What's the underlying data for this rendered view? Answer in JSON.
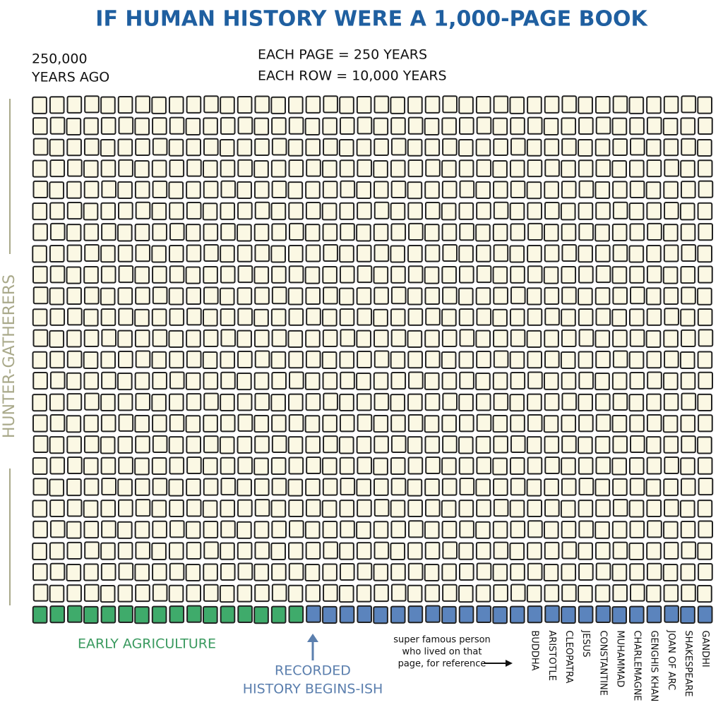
{
  "title": "IF HUMAN HISTORY WERE A 1,000-PAGE BOOK",
  "start_label": [
    "250,000",
    "YEARS AGO"
  ],
  "scale_notes": [
    "EACH PAGE = 250 YEARS",
    "EACH ROW = 10,000 YEARS"
  ],
  "columns": 40,
  "segments": [
    {
      "label": [
        "HUNTER-GATHERERS"
      ],
      "pages": 960,
      "color": "#fbf8e4"
    },
    {
      "label": [
        "EARLY AGRICULTURE"
      ],
      "pages": 16,
      "color": "#3fab6b"
    },
    {
      "label": [
        "RECORDED",
        "HISTORY BEGINS-ISH"
      ],
      "pages": 24,
      "color": "#5b84bd"
    }
  ],
  "reference_note": [
    "super famous person",
    "who lived on that",
    "page, for reference"
  ],
  "people": [
    "BUDDHA",
    "ARISTOTLE",
    "CLEOPATRA",
    "JESUS",
    "CONSTANTINE",
    "MUHAMMAD",
    "CHARLEMAGNE",
    "GENGHIS KHAN",
    "JOAN OF ARC",
    "SHAKESPEARE",
    "GANDHI"
  ]
}
